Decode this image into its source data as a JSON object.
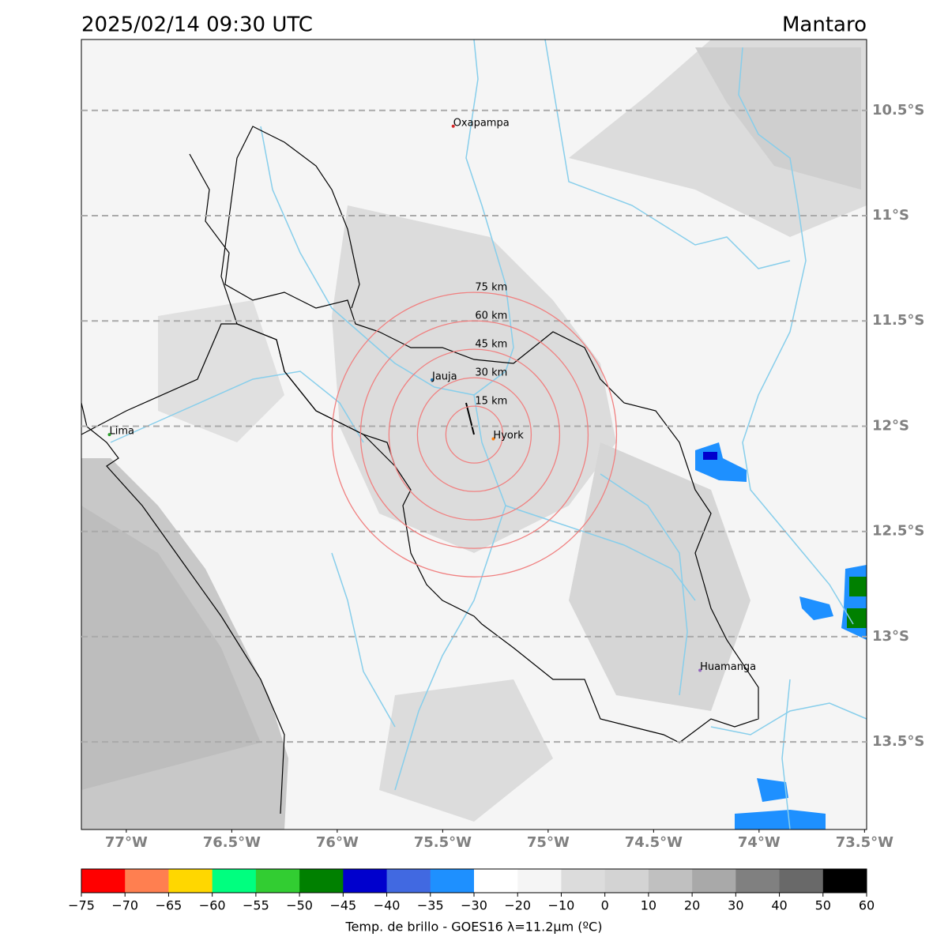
{
  "header": {
    "title": "2025/02/14 09:30 UTC",
    "region": "Mantaro"
  },
  "map": {
    "lonlim": [
      -77.213,
      -73.49
    ],
    "latlim": [
      -13.916,
      -10.163
    ],
    "lon_ticks": [
      {
        "value": -77,
        "label": "77°W"
      },
      {
        "value": -76.5,
        "label": "76.5°W"
      },
      {
        "value": -76,
        "label": "76°W"
      },
      {
        "value": -75.5,
        "label": "75.5°W"
      },
      {
        "value": -75,
        "label": "75°W"
      },
      {
        "value": -74.5,
        "label": "74.5°W"
      },
      {
        "value": -74,
        "label": "74°W"
      },
      {
        "value": -73.5,
        "label": "73.5°W"
      }
    ],
    "lat_ticks": [
      {
        "value": -10.5,
        "label": "10.5°S"
      },
      {
        "value": -11,
        "label": "11°S"
      },
      {
        "value": -11.5,
        "label": "11.5°S"
      },
      {
        "value": -12,
        "label": "12°S"
      },
      {
        "value": -12.5,
        "label": "12.5°S"
      },
      {
        "value": -13,
        "label": "13°S"
      },
      {
        "value": -13.5,
        "label": "13.5°S"
      }
    ],
    "cities": [
      {
        "name": "Oxapampa",
        "lon": -75.45,
        "lat": -10.575,
        "color": "#d62728"
      },
      {
        "name": "Lima",
        "lon": -77.08,
        "lat": -12.04,
        "color": "#2ca02c"
      },
      {
        "name": "Jauja",
        "lon": -75.55,
        "lat": -11.78,
        "color": "#1f77b4"
      },
      {
        "name": "Hyork",
        "lon": -75.26,
        "lat": -12.06,
        "color": "#ff7f0e"
      },
      {
        "name": "Huamanga",
        "lon": -74.28,
        "lat": -13.16,
        "color": "#9467bd"
      }
    ],
    "ring_center": {
      "lon": -75.35,
      "lat": -12.04
    },
    "rings": [
      {
        "value": 15,
        "label": "15 km"
      },
      {
        "value": 30,
        "label": "30 km"
      },
      {
        "value": 45,
        "label": "45 km"
      },
      {
        "value": 60,
        "label": "60 km"
      },
      {
        "value": 75,
        "label": "75 km"
      }
    ],
    "ring_color": "#f08080"
  },
  "colorbar": {
    "label": "Temp. de brillo - GOES16 λ=11.2μm (ºC)",
    "ticks": [
      {
        "value": -75,
        "label": "−75"
      },
      {
        "value": -70,
        "label": "−70"
      },
      {
        "value": -65,
        "label": "−65"
      },
      {
        "value": -60,
        "label": "−60"
      },
      {
        "value": -55,
        "label": "−55"
      },
      {
        "value": -50,
        "label": "−50"
      },
      {
        "value": -45,
        "label": "−45"
      },
      {
        "value": -40,
        "label": "−40"
      },
      {
        "value": -35,
        "label": "−35"
      },
      {
        "value": -30,
        "label": "−30"
      },
      {
        "value": -20,
        "label": "−20"
      },
      {
        "value": -10,
        "label": "−10"
      },
      0,
      10,
      20,
      30,
      40,
      50,
      60
    ],
    "colors": [
      "#ff0000",
      "#ff7f50",
      "#ffd700",
      "#00ff7f",
      "#32cd32",
      "#008000",
      "#0000cd",
      "#4169e1",
      "#1e90ff",
      "#ffffff",
      "#f5f5f5",
      "#dcdcdc",
      "#d3d3d3",
      "#c0c0c0",
      "#a9a9a9",
      "#808080",
      "#696969",
      "#000000"
    ]
  }
}
